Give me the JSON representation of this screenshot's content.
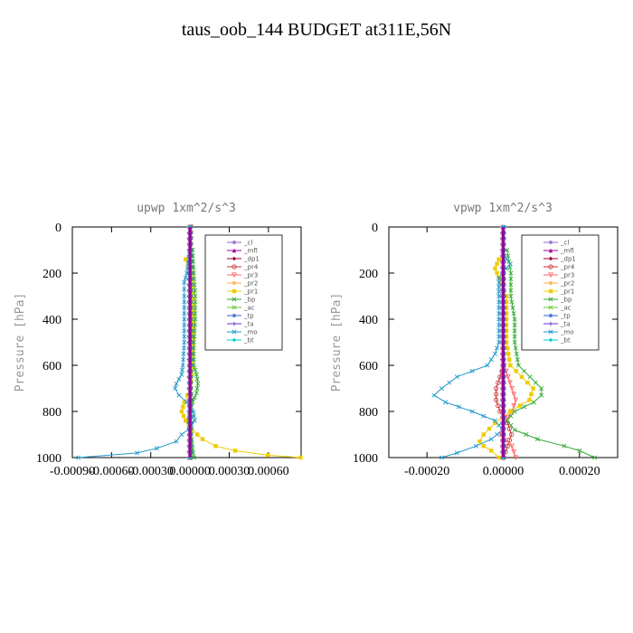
{
  "title": "taus_oob_144  BUDGET at311E,56N",
  "chart_data": [
    {
      "type": "line",
      "title": "upwp   1xm^2/s^3",
      "ylabel": "Pressure [hPa]",
      "xlabel": "",
      "xlim": [
        -0.0009,
        0.00085
      ],
      "ylim": [
        1000,
        0
      ],
      "xticks": [
        -0.0009,
        -0.0006,
        -0.0003,
        0.0,
        0.0003,
        0.0006
      ],
      "xtick_labels": [
        "-0.00090",
        "-0.00060",
        "-0.00030",
        "0.00000",
        "0.00030",
        "0.00060"
      ],
      "yticks": [
        0,
        200,
        400,
        600,
        800,
        1000
      ],
      "ytick_labels": [
        "0",
        "200",
        "400",
        "600",
        "800",
        "1000"
      ],
      "legend_position": "top-right",
      "series": [
        {
          "name": "_cl",
          "color": "#9966cc",
          "y": [
            0,
            1000
          ],
          "values": [
            0,
            0
          ]
        },
        {
          "name": "_mfl",
          "color": "#990099",
          "y": [
            0,
            1000
          ],
          "values": [
            0,
            0
          ]
        },
        {
          "name": "_dp1",
          "color": "#990033",
          "y": [
            0,
            1000
          ],
          "values": [
            0,
            0
          ]
        },
        {
          "name": "_pr4",
          "color": "#cc3333",
          "y": [
            0,
            1000
          ],
          "values": [
            0,
            0
          ]
        },
        {
          "name": "_pr3",
          "color": "#ff6666",
          "y": [
            0,
            1000
          ],
          "values": [
            0,
            0
          ]
        },
        {
          "name": "_pr2",
          "color": "#ffaa44",
          "y": [
            0,
            1000
          ],
          "values": [
            0,
            0
          ]
        },
        {
          "name": "_pr1",
          "color": "#eecc00",
          "y": [
            140,
            180,
            260,
            360,
            480,
            560,
            640,
            700,
            760,
            800,
            840,
            880,
            920,
            950,
            970,
            990,
            1000
          ],
          "values": [
            -3e-05,
            1e-05,
            2e-05,
            3e-05,
            3e-05,
            2e-05,
            2e-05,
            1e-05,
            -4e-05,
            -6e-05,
            -3e-05,
            2e-05,
            0.0001,
            0.0002,
            0.00035,
            0.0006,
            0.00085
          ]
        },
        {
          "name": "_bp",
          "color": "#33aa33",
          "y": [
            100,
            200,
            300,
            400,
            500,
            600,
            640,
            680,
            720,
            760,
            800,
            840,
            880,
            920,
            960,
            1000
          ],
          "values": [
            2e-05,
            3e-05,
            4e-05,
            4e-05,
            3e-05,
            3e-05,
            5e-05,
            6e-05,
            5e-05,
            2e-05,
            0.0,
            -1e-05,
            0.0,
            1e-05,
            2e-05,
            3e-05
          ]
        },
        {
          "name": "_ac",
          "color": "#66cc33",
          "y": [
            0,
            1000
          ],
          "values": [
            0,
            0
          ]
        },
        {
          "name": "_tp",
          "color": "#3366cc",
          "y": [
            0,
            1000
          ],
          "values": [
            0,
            0
          ]
        },
        {
          "name": "_ta",
          "color": "#6633cc",
          "y": [
            0,
            1000
          ],
          "values": [
            0,
            0
          ]
        },
        {
          "name": "_mo",
          "color": "#2299cc",
          "y": [
            120,
            160,
            200,
            240,
            300,
            400,
            500,
            600,
            640,
            680,
            700,
            730,
            760,
            800,
            840,
            870,
            900,
            930,
            960,
            980,
            1000
          ],
          "values": [
            0.0,
            -1e-05,
            -2e-05,
            -4e-05,
            -4e-05,
            -4e-05,
            -4e-05,
            -5e-05,
            -6e-05,
            -0.0001,
            -0.00011,
            -8e-05,
            -2e-05,
            3e-05,
            4e-05,
            1e-05,
            -6e-05,
            -0.0001,
            -0.00025,
            -0.0004,
            -0.00085
          ]
        },
        {
          "name": "_bt",
          "color": "#00cccc",
          "y": [
            0,
            1000
          ],
          "values": [
            0,
            0
          ]
        }
      ]
    },
    {
      "type": "line",
      "title": "vpwp   1xm^2/s^3",
      "ylabel": "Pressure [hPa]",
      "xlabel": "",
      "xlim": [
        -0.0003,
        0.0003
      ],
      "ylim": [
        1000,
        0
      ],
      "xticks": [
        -0.0002,
        0.0,
        0.0002
      ],
      "xtick_labels": [
        "-0.00020",
        "0.00000",
        "0.00020"
      ],
      "yticks": [
        0,
        200,
        400,
        600,
        800,
        1000
      ],
      "ytick_labels": [
        "0",
        "200",
        "400",
        "600",
        "800",
        "1000"
      ],
      "legend_position": "top-right",
      "series": [
        {
          "name": "_cl",
          "color": "#9966cc",
          "y": [
            0,
            1000
          ],
          "values": [
            0,
            0
          ]
        },
        {
          "name": "_mfl",
          "color": "#990099",
          "y": [
            0,
            1000
          ],
          "values": [
            0,
            0
          ]
        },
        {
          "name": "_dp1",
          "color": "#990033",
          "y": [
            0,
            1000
          ],
          "values": [
            0,
            0
          ]
        },
        {
          "name": "_pr4",
          "color": "#cc3333",
          "y": [
            600,
            650,
            700,
            750,
            800,
            850,
            900,
            950,
            1000
          ],
          "values": [
            0.0,
            -1e-05,
            -2e-05,
            -2e-05,
            -1e-05,
            1e-05,
            2e-05,
            1e-05,
            0.0
          ]
        },
        {
          "name": "_pr3",
          "color": "#ff6666",
          "y": [
            600,
            650,
            700,
            750,
            800,
            850,
            900,
            950,
            1000
          ],
          "values": [
            0.0,
            1e-05,
            2e-05,
            3e-05,
            2e-05,
            0.0,
            -1e-05,
            2e-05,
            3e-05
          ]
        },
        {
          "name": "_pr2",
          "color": "#ffaa44",
          "y": [
            0,
            1000
          ],
          "values": [
            0,
            0
          ]
        },
        {
          "name": "_pr1",
          "color": "#eecc00",
          "y": [
            140,
            180,
            220,
            300,
            400,
            500,
            600,
            650,
            700,
            750,
            800,
            850,
            900,
            930,
            950,
            970,
            1000
          ],
          "values": [
            -1e-05,
            -2e-05,
            -1e-05,
            1e-05,
            1e-05,
            1e-05,
            2e-05,
            5e-05,
            8e-05,
            7e-05,
            2e-05,
            -2e-05,
            -5e-05,
            -6e-05,
            -5e-05,
            -3e-05,
            -1e-05
          ]
        },
        {
          "name": "_bp",
          "color": "#33aa33",
          "y": [
            100,
            200,
            300,
            400,
            500,
            600,
            650,
            700,
            730,
            760,
            800,
            840,
            880,
            920,
            950,
            970,
            1000
          ],
          "values": [
            1e-05,
            2e-05,
            2e-05,
            3e-05,
            3e-05,
            4e-05,
            7e-05,
            0.0001,
            0.0001,
            8e-05,
            3e-05,
            1e-05,
            3e-05,
            9e-05,
            0.00016,
            0.0002,
            0.00024
          ]
        },
        {
          "name": "_ac",
          "color": "#66cc33",
          "y": [
            0,
            1000
          ],
          "values": [
            0,
            0
          ]
        },
        {
          "name": "_tp",
          "color": "#3366cc",
          "y": [
            0,
            1000
          ],
          "values": [
            0,
            0
          ]
        },
        {
          "name": "_ta",
          "color": "#6633cc",
          "y": [
            0,
            1000
          ],
          "values": [
            0,
            0
          ]
        },
        {
          "name": "_mo",
          "color": "#2299cc",
          "y": [
            120,
            140,
            160,
            180,
            200,
            220,
            260,
            300,
            400,
            500,
            550,
            600,
            650,
            700,
            730,
            760,
            800,
            840,
            880,
            920,
            950,
            980,
            1000
          ],
          "values": [
            0.0,
            1e-05,
            2e-05,
            1e-05,
            0.0,
            -1e-05,
            -1e-05,
            -1e-05,
            -1e-05,
            -1e-05,
            -2e-05,
            -4e-05,
            -0.00012,
            -0.00016,
            -0.00018,
            -0.00015,
            -8e-05,
            -2e-05,
            0.0,
            -3e-05,
            -7e-05,
            -0.00012,
            -0.00016
          ]
        },
        {
          "name": "_bt",
          "color": "#00cccc",
          "y": [
            0,
            1000
          ],
          "values": [
            0,
            0
          ]
        }
      ]
    }
  ]
}
